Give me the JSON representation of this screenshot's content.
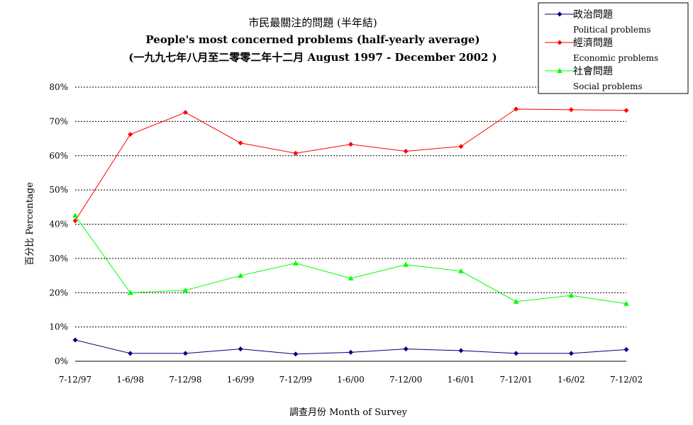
{
  "chart_data": {
    "type": "line",
    "title": "市民最關注的問題 (半年結)",
    "subtitle_line1": "People's most concerned problems (half-yearly average)",
    "subtitle_line2": "(一九九七年八月至二零零二年十二月 August 1997 - December 2002 )",
    "xlabel": "調查月份 Month of Survey",
    "ylabel": "百分比 Percentage",
    "categories": [
      "7-12/97",
      "1-6/98",
      "7-12/98",
      "1-6/99",
      "7-12/99",
      "1-6/00",
      "7-12/00",
      "1-6/01",
      "7-12/01",
      "1-6/02",
      "7-12/02"
    ],
    "ylim": [
      0,
      80
    ],
    "yticks": [
      "0%",
      "10%",
      "20%",
      "30%",
      "40%",
      "50%",
      "60%",
      "70%",
      "80%"
    ],
    "grid": "horizontal dashed",
    "legend_position": "top-right",
    "series": [
      {
        "name": "政治問題",
        "name_en": "Political problems",
        "color": "#000080",
        "marker": "diamond",
        "values": [
          6.2,
          2.3,
          2.3,
          3.6,
          2.1,
          2.6,
          3.6,
          3.1,
          2.3,
          2.3,
          3.4
        ]
      },
      {
        "name": "經濟問題",
        "name_en": "Economic problems",
        "color": "#ff0000",
        "marker": "diamond",
        "values": [
          41.0,
          66.2,
          72.6,
          63.7,
          60.7,
          63.3,
          61.3,
          62.7,
          73.6,
          73.4,
          73.2
        ]
      },
      {
        "name": "社會問題",
        "name_en": "Social problems",
        "color": "#00ff00",
        "marker": "triangle",
        "values": [
          42.5,
          20.0,
          20.7,
          25.0,
          28.6,
          24.2,
          28.2,
          26.3,
          17.4,
          19.2,
          16.8
        ]
      }
    ]
  }
}
